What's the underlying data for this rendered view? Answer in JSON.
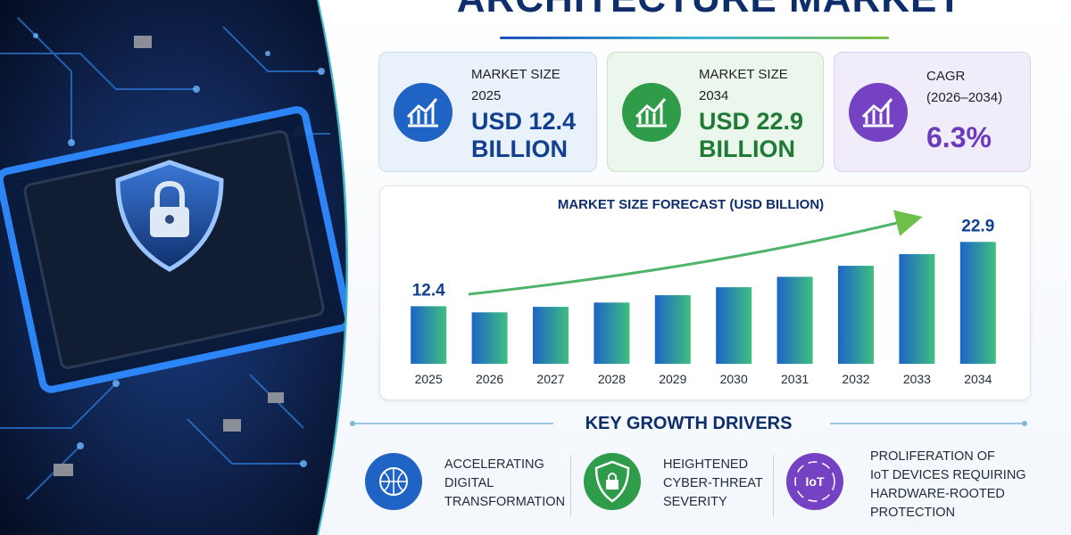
{
  "header": {
    "title": "ARCHITECTURE MARKET"
  },
  "cards": [
    {
      "label": "MARKET SIZE",
      "period": "2025",
      "value": "USD 12.4",
      "unit": "BILLION"
    },
    {
      "label": "MARKET SIZE",
      "period": "2034",
      "value": "USD 22.9",
      "unit": "BILLION"
    },
    {
      "label": "CAGR",
      "period": "(2026–2034)",
      "value": "6.3%"
    }
  ],
  "chart_data": {
    "type": "bar",
    "title": "MARKET SIZE FORECAST (USD BILLION)",
    "categories": [
      "2025",
      "2026",
      "2027",
      "2028",
      "2029",
      "2030",
      "2031",
      "2032",
      "2033",
      "2034"
    ],
    "values": [
      12.4,
      11.4,
      12.3,
      13.0,
      14.2,
      15.5,
      17.2,
      19.0,
      20.9,
      22.9
    ],
    "value_labels": [
      "12.4",
      null,
      null,
      null,
      null,
      null,
      null,
      null,
      null,
      "22.9"
    ],
    "ylim": [
      3,
      26
    ]
  },
  "drivers": {
    "title": "KEY GROWTH DRIVERS",
    "items": [
      {
        "lines": [
          "ACCELERATING",
          "DIGITAL",
          "TRANSFORMATION"
        ]
      },
      {
        "lines": [
          "HEIGHTENED",
          "CYBER-THREAT",
          "SEVERITY"
        ]
      },
      {
        "lines": [
          "PROLIFERATION OF",
          "IoT DEVICES REQUIRING",
          "HARDWARE-ROOTED",
          "PROTECTION"
        ]
      }
    ]
  }
}
